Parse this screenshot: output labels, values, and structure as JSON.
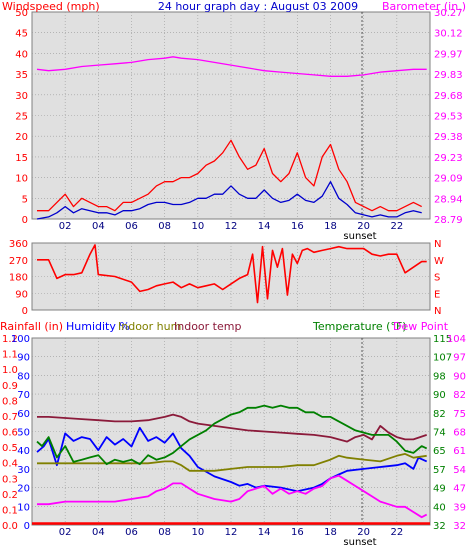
{
  "colors": {
    "wind": "#ff0000",
    "wind_avg": "#0000cc",
    "barometer": "#ff00ff",
    "direction": "#ff0000",
    "rain": "#ff0000",
    "humidity": "#0000ff",
    "indoor_hum": "#808000",
    "indoor_temp": "#8b1a3a",
    "temperature": "#008000",
    "dew_point": "#ff00ff",
    "panel_bg": "#e0e0e0",
    "grid": "#9a9a9a"
  },
  "chart_data": [
    {
      "type": "line",
      "title": "24 hour graph day : August 03 2009",
      "ylabel_left": "Windspeed (mph)",
      "ylabel_right": "Barometer (in.)",
      "x_ticks": [
        "02",
        "04",
        "06",
        "08",
        "10",
        "12",
        "14",
        "16",
        "18",
        "20",
        "22"
      ],
      "x_annotation": "sunset",
      "x_annotation_at": 19.9,
      "y_left_ticks": [
        "50",
        "45",
        "40",
        "35",
        "30",
        "25",
        "20",
        "15",
        "10",
        "5",
        "0"
      ],
      "y_right_ticks": [
        "30.27",
        "30.12",
        "29.97",
        "29.83",
        "29.68",
        "29.53",
        "29.38",
        "29.23",
        "29.09",
        "28.94",
        "28.79"
      ],
      "ylim_left": [
        0,
        50
      ],
      "ylim_right": [
        28.79,
        30.27
      ],
      "grid": true,
      "series": [
        {
          "key": "gust",
          "color": "#ff0000",
          "axis": "left",
          "x": [
            0.3,
            1,
            1.5,
            2,
            2.5,
            3,
            3.5,
            4,
            4.5,
            5,
            5.5,
            6,
            6.5,
            7,
            7.5,
            8,
            8.5,
            9,
            9.5,
            10,
            10.5,
            11,
            11.5,
            12,
            12.5,
            13,
            13.5,
            14,
            14.5,
            15,
            15.5,
            16,
            16.5,
            17,
            17.5,
            18,
            18.5,
            19,
            19.5,
            20,
            20.5,
            21,
            21.5,
            22,
            22.5,
            23,
            23.5
          ],
          "y": [
            2,
            2,
            4,
            6,
            3,
            5,
            4,
            3,
            3,
            2,
            4,
            4,
            5,
            6,
            8,
            9,
            9,
            10,
            10,
            11,
            13,
            14,
            16,
            19,
            15,
            12,
            13,
            17,
            11,
            9,
            11,
            16,
            10,
            8,
            15,
            18,
            12,
            9,
            4,
            3,
            2,
            3,
            2,
            2,
            3,
            4,
            3
          ]
        },
        {
          "key": "average",
          "color": "#0000cc",
          "axis": "left",
          "x": [
            0.3,
            1,
            1.5,
            2,
            2.5,
            3,
            3.5,
            4,
            4.5,
            5,
            5.5,
            6,
            6.5,
            7,
            7.5,
            8,
            8.5,
            9,
            9.5,
            10,
            10.5,
            11,
            11.5,
            12,
            12.5,
            13,
            13.5,
            14,
            14.5,
            15,
            15.5,
            16,
            16.5,
            17,
            17.5,
            18,
            18.5,
            19,
            19.5,
            20,
            20.5,
            21,
            21.5,
            22,
            22.5,
            23,
            23.5
          ],
          "y": [
            0,
            0.5,
            1.5,
            3,
            1.5,
            2.5,
            2,
            1.5,
            1.5,
            1,
            2,
            2,
            2.5,
            3.5,
            4,
            4,
            3.5,
            3.5,
            4,
            5,
            5,
            6,
            6,
            8,
            6,
            5,
            5,
            7,
            5,
            4,
            4.5,
            6,
            4.5,
            4,
            5.5,
            9,
            5,
            3.5,
            1.5,
            1,
            0.5,
            1,
            0.5,
            0.5,
            1.5,
            2,
            1.5
          ]
        },
        {
          "name": "Barometer",
          "key": "barometer",
          "color": "#ff00ff",
          "axis": "right",
          "x": [
            0.3,
            1,
            2,
            3,
            4,
            5,
            6,
            7,
            8,
            8.5,
            9,
            10,
            11,
            12,
            13,
            14,
            15,
            16,
            17,
            18,
            19,
            20,
            21,
            22,
            23,
            23.8
          ],
          "y": [
            29.86,
            29.85,
            29.86,
            29.88,
            29.89,
            29.9,
            29.91,
            29.93,
            29.94,
            29.95,
            29.94,
            29.93,
            29.91,
            29.89,
            29.87,
            29.85,
            29.84,
            29.83,
            29.82,
            29.81,
            29.81,
            29.82,
            29.84,
            29.85,
            29.86,
            29.86
          ]
        }
      ]
    },
    {
      "type": "scatter",
      "ylabel_left_ticks": [
        "360",
        "270",
        "180",
        "90",
        "0"
      ],
      "ylabel_right_ticks": [
        "N",
        "W",
        "S",
        "E",
        "N"
      ],
      "ylim": [
        0,
        360
      ],
      "x_ticks": [
        "02",
        "04",
        "06",
        "08",
        "10",
        "12",
        "14",
        "16",
        "18",
        "20",
        "22"
      ],
      "series": [
        {
          "key": "wind_direction",
          "color": "#ff0000",
          "x": [
            0.3,
            1,
            1.5,
            2,
            2.5,
            3,
            3.5,
            3.8,
            4,
            5,
            6,
            6.5,
            7,
            7.5,
            8,
            8.5,
            9,
            9.5,
            10,
            10.5,
            11,
            11.5,
            12,
            12.5,
            13,
            13.3,
            13.6,
            13.9,
            14.2,
            14.5,
            14.8,
            15.1,
            15.4,
            15.7,
            16,
            16.3,
            16.6,
            17,
            17.5,
            18,
            18.5,
            19,
            19.5,
            20,
            20.5,
            21,
            21.5,
            22,
            22.5,
            23,
            23.5,
            23.8
          ],
          "y": [
            270,
            270,
            170,
            190,
            190,
            200,
            300,
            350,
            190,
            180,
            150,
            100,
            110,
            130,
            140,
            150,
            120,
            140,
            120,
            130,
            140,
            110,
            140,
            170,
            190,
            300,
            40,
            340,
            60,
            320,
            230,
            330,
            80,
            300,
            250,
            320,
            330,
            310,
            320,
            330,
            340,
            330,
            330,
            330,
            300,
            290,
            300,
            300,
            200,
            230,
            260,
            260
          ]
        }
      ]
    },
    {
      "type": "line",
      "labels_left": [
        "Rainfall (in)",
        "Humidity %",
        "Indoor hum",
        "Indoor temp"
      ],
      "labels_right": [
        "Temperature (°F)",
        "Dew Point"
      ],
      "x_ticks": [
        "02",
        "04",
        "06",
        "08",
        "10",
        "12",
        "14",
        "16",
        "18",
        "20",
        "22"
      ],
      "x_annotation": "sunset",
      "x_annotation_at": 19.9,
      "y_rain_ticks": [
        "1.2",
        "1.1",
        "1.0",
        "0.9",
        "0.8",
        "0.7",
        "0.6",
        "0.5",
        "0.4",
        "0.3",
        "0.2",
        "0.1",
        "0.0"
      ],
      "y_hum_ticks": [
        "100",
        "90",
        "80",
        "70",
        "60",
        "50",
        "40",
        "30",
        "20",
        "10",
        "0"
      ],
      "y_temp_ticks": [
        "115",
        "107",
        "98",
        "90",
        "82",
        "74",
        "65",
        "57",
        "49",
        "40",
        "32"
      ],
      "y_dew_ticks": [
        "104",
        "97",
        "90",
        "82",
        "75",
        "68",
        "61",
        "54",
        "47",
        "39",
        "32"
      ],
      "ylim_hum": [
        0,
        100
      ],
      "ylim_temp": [
        32,
        115
      ],
      "ylim_dew": [
        32,
        104
      ],
      "grid": true,
      "series": [
        {
          "key": "rainfall",
          "color": "#ff0000",
          "axis": "rain",
          "x": [
            0,
            24
          ],
          "y": [
            0,
            0
          ]
        },
        {
          "name": "Humidity %",
          "key": "humidity",
          "color": "#0000ff",
          "axis": "hum",
          "x": [
            0.3,
            0.7,
            1,
            1.5,
            2,
            2.5,
            3,
            3.5,
            4,
            4.5,
            5,
            5.5,
            6,
            6.5,
            7,
            7.5,
            8,
            8.5,
            9,
            9.5,
            10,
            11,
            12,
            12.5,
            13,
            13.5,
            14,
            15,
            16,
            17,
            17.5,
            18,
            18.5,
            19,
            20,
            21,
            22,
            22.5,
            23,
            23.3,
            23.8
          ],
          "y": [
            39,
            42,
            46,
            32,
            49,
            45,
            47,
            46,
            40,
            47,
            43,
            46,
            42,
            52,
            45,
            47,
            44,
            49,
            41,
            37,
            31,
            26,
            23,
            21,
            22,
            20,
            21,
            20,
            18,
            20,
            22,
            25,
            27,
            29,
            30,
            31,
            32,
            33,
            30,
            36,
            34
          ]
        },
        {
          "name": "Indoor hum",
          "key": "indoor_hum",
          "color": "#808000",
          "axis": "hum",
          "x": [
            0.3,
            1,
            2,
            3,
            4,
            5,
            6,
            7,
            8,
            8.5,
            9,
            9.5,
            10,
            11,
            12,
            13,
            14,
            15,
            16,
            17,
            18,
            18.5,
            19,
            20,
            21,
            22,
            22.5,
            23,
            23.8
          ],
          "y": [
            33,
            33,
            33,
            33,
            33,
            33,
            33,
            33,
            34,
            34,
            32,
            29,
            29,
            29,
            30,
            31,
            31,
            31,
            32,
            32,
            35,
            37,
            36,
            35,
            34,
            37,
            38,
            36,
            37
          ]
        },
        {
          "name": "Indoor temp",
          "key": "indoor_temp",
          "color": "#8b1a3a",
          "axis": "temp",
          "x": [
            0.3,
            1,
            2,
            3,
            4,
            5,
            6,
            7,
            8,
            8.5,
            9,
            9.5,
            10,
            11,
            12,
            13,
            14,
            15,
            16,
            17,
            18,
            18.5,
            19,
            19.5,
            20,
            20.5,
            21,
            21.5,
            22,
            22.5,
            23,
            23.8
          ],
          "y": [
            80,
            80,
            79.5,
            79,
            78.5,
            78,
            78,
            78.5,
            80,
            81,
            80,
            78,
            77,
            76,
            75,
            74,
            73.5,
            73,
            72.5,
            72,
            71,
            70,
            69,
            71,
            72,
            70,
            76,
            73,
            71,
            70,
            70,
            72
          ]
        },
        {
          "name": "Temperature (°F)",
          "key": "temperature",
          "color": "#008000",
          "axis": "temp",
          "x": [
            0.3,
            0.6,
            1,
            1.5,
            2,
            2.5,
            3,
            3.5,
            4,
            4.5,
            5,
            5.5,
            6,
            6.5,
            7,
            7.5,
            8,
            8.5,
            9,
            9.5,
            10,
            10.5,
            11,
            11.5,
            12,
            12.5,
            13,
            13.5,
            14,
            14.5,
            15,
            15.5,
            16,
            16.5,
            17,
            17.5,
            18,
            18.5,
            19,
            19.5,
            20,
            20.5,
            21,
            21.5,
            22,
            22.5,
            23,
            23.5,
            23.8
          ],
          "y": [
            69,
            67,
            71,
            62,
            67,
            60,
            61,
            62,
            63,
            59,
            61,
            60,
            61,
            59,
            63,
            61,
            62,
            64,
            67,
            70,
            72,
            74,
            77,
            79,
            81,
            82,
            84,
            84,
            85,
            84,
            85,
            84,
            84,
            82,
            82,
            80,
            80,
            78,
            76,
            74,
            73,
            72,
            72,
            72,
            69,
            65,
            64,
            67,
            66
          ]
        },
        {
          "name": "Dew Point",
          "key": "dew_point",
          "color": "#ff00ff",
          "axis": "dew",
          "x": [
            0.3,
            1,
            2,
            3,
            4,
            5,
            6,
            7,
            7.5,
            8,
            8.5,
            9,
            9.5,
            10,
            11,
            12,
            12.5,
            13,
            13.5,
            14,
            14.5,
            15,
            15.5,
            16,
            16.5,
            17,
            17.5,
            18,
            18.5,
            19,
            19.5,
            20,
            20.5,
            21,
            21.5,
            22,
            22.5,
            23,
            23.5,
            23.8
          ],
          "y": [
            40,
            40,
            41,
            41,
            41,
            41,
            42,
            43,
            45,
            46,
            48,
            48,
            46,
            44,
            42,
            41,
            42,
            45,
            46,
            47,
            44,
            46,
            44,
            45,
            44,
            46,
            47,
            50,
            51,
            49,
            47,
            45,
            43,
            41,
            40,
            39,
            39,
            37,
            35,
            36
          ]
        }
      ]
    }
  ]
}
